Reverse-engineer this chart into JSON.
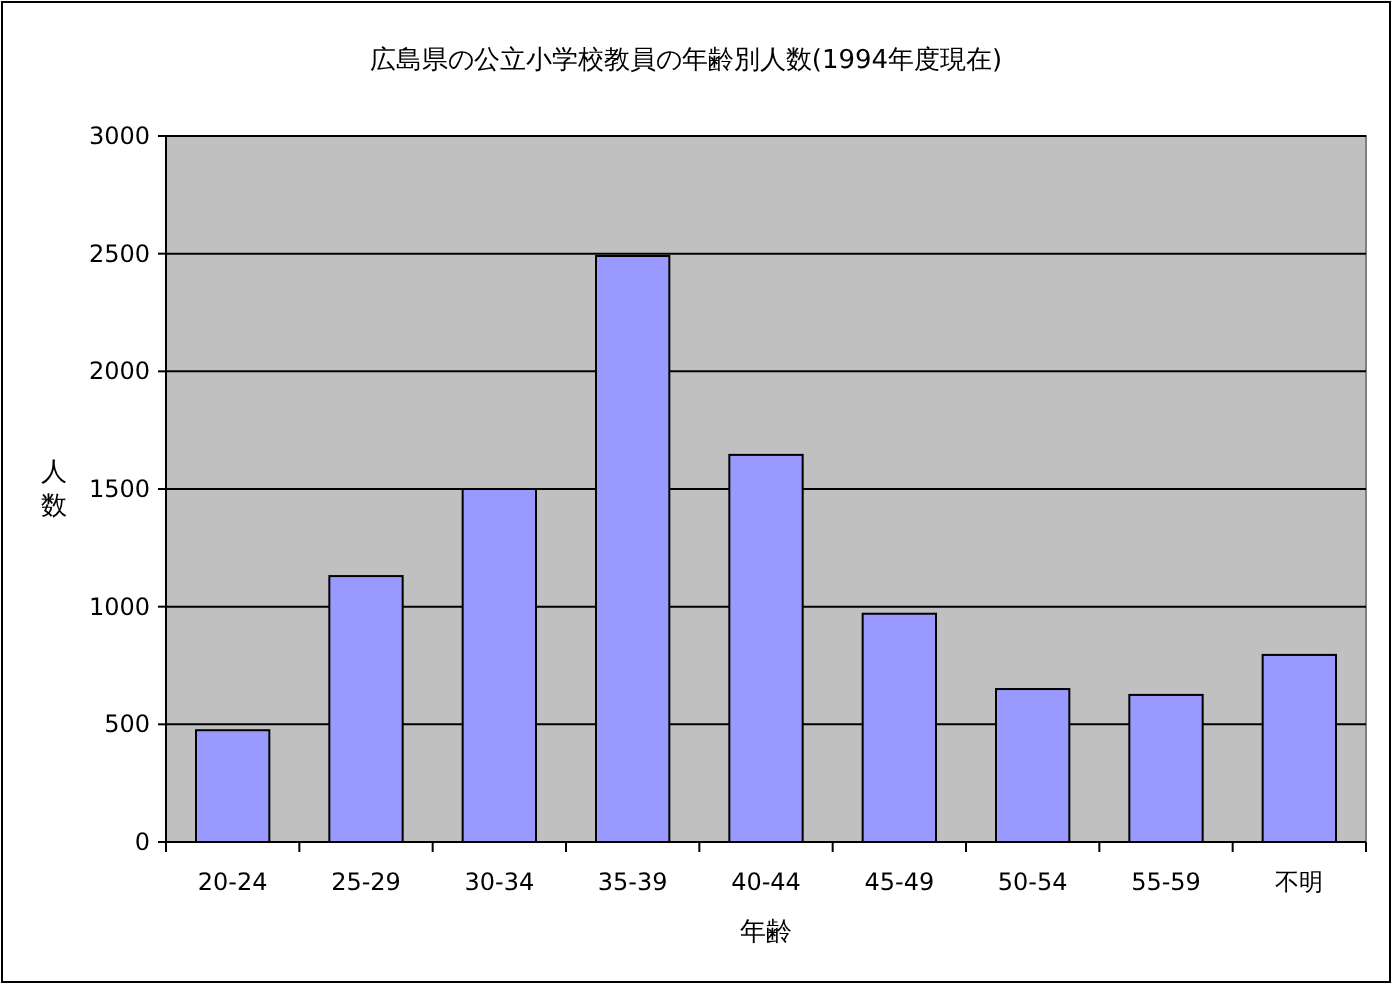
{
  "chart_data": {
    "type": "bar",
    "title": "広島県の公立小学校教員の年齢別人数(1994年度現在)",
    "xlabel": "年齢",
    "ylabel": "人数",
    "categories": [
      "20-24",
      "25-29",
      "30-34",
      "35-39",
      "40-44",
      "45-49",
      "50-54",
      "55-59",
      "不明"
    ],
    "values": [
      475,
      1130,
      1500,
      2490,
      1645,
      970,
      650,
      625,
      795
    ],
    "color": "#9999ff",
    "ylim": [
      0,
      3000
    ],
    "yticks": [
      0,
      500,
      1000,
      1500,
      2000,
      2500,
      3000
    ],
    "grid": "y"
  }
}
